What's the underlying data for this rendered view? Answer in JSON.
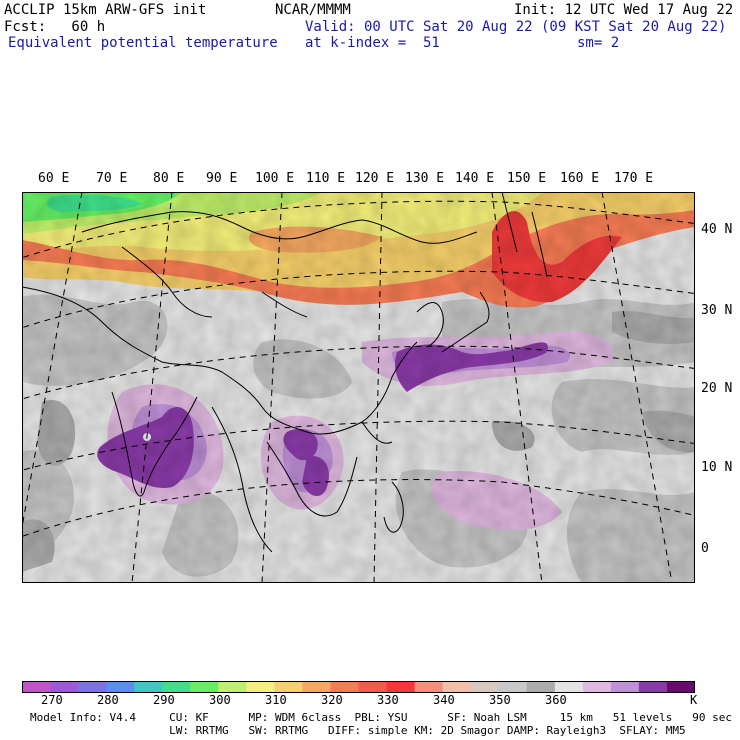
{
  "header": {
    "line1_left": "ACCLIP 15km ARW-GFS init",
    "line1_center": "NCAR/MMMM",
    "line1_right": "Init: 12 UTC Wed 17 Aug 22",
    "line2_left": "Fcst:   60 h",
    "line2_right": "Valid: 00 UTC Sat 20 Aug 22 (09 KST Sat 20 Aug 22)",
    "line3_left": "Equivalent potential temperature",
    "line3_center": "at k-index =  51",
    "line3_right": "sm= 2"
  },
  "map": {
    "longitude_labels": [
      "60 E",
      "70 E",
      "80 E",
      "90 E",
      "100 E",
      "110 E",
      "120 E",
      "130 E",
      "140 E",
      "150 E",
      "160 E",
      "170 E"
    ],
    "latitude_labels": [
      "40 N",
      "30 N",
      "20 N",
      "10 N",
      "0"
    ]
  },
  "colorbar": {
    "colors": [
      "#c452c9",
      "#9e5ad6",
      "#7d74df",
      "#5a8ef0",
      "#3ec8c4",
      "#3ee08c",
      "#64f064",
      "#bff06a",
      "#f4f07a",
      "#f7d06a",
      "#f6a860",
      "#f77c54",
      "#f65a4a",
      "#f03a3a",
      "#f4907a",
      "#f2c0a8",
      "#d6c8be",
      "#c8c8c8",
      "#ababab",
      "#e4e4e4",
      "#e0b8e0",
      "#c090d8",
      "#8a3aa8",
      "#6a0a6e"
    ],
    "tick_labels": [
      "270",
      "280",
      "290",
      "300",
      "310",
      "320",
      "330",
      "340",
      "350",
      "360"
    ],
    "unit": "K"
  },
  "footer": {
    "line1": "Model Info: V4.4     CU: KF      MP: WDM 6class  PBL: YSU      SF: Noah LSM     15 km   51 levels   90 sec",
    "line2": "                     LW: RRTMG   SW: RRTMG   DIFF: simple KM: 2D Smagor DAMP: Rayleigh3  SFLAY: MM5"
  }
}
